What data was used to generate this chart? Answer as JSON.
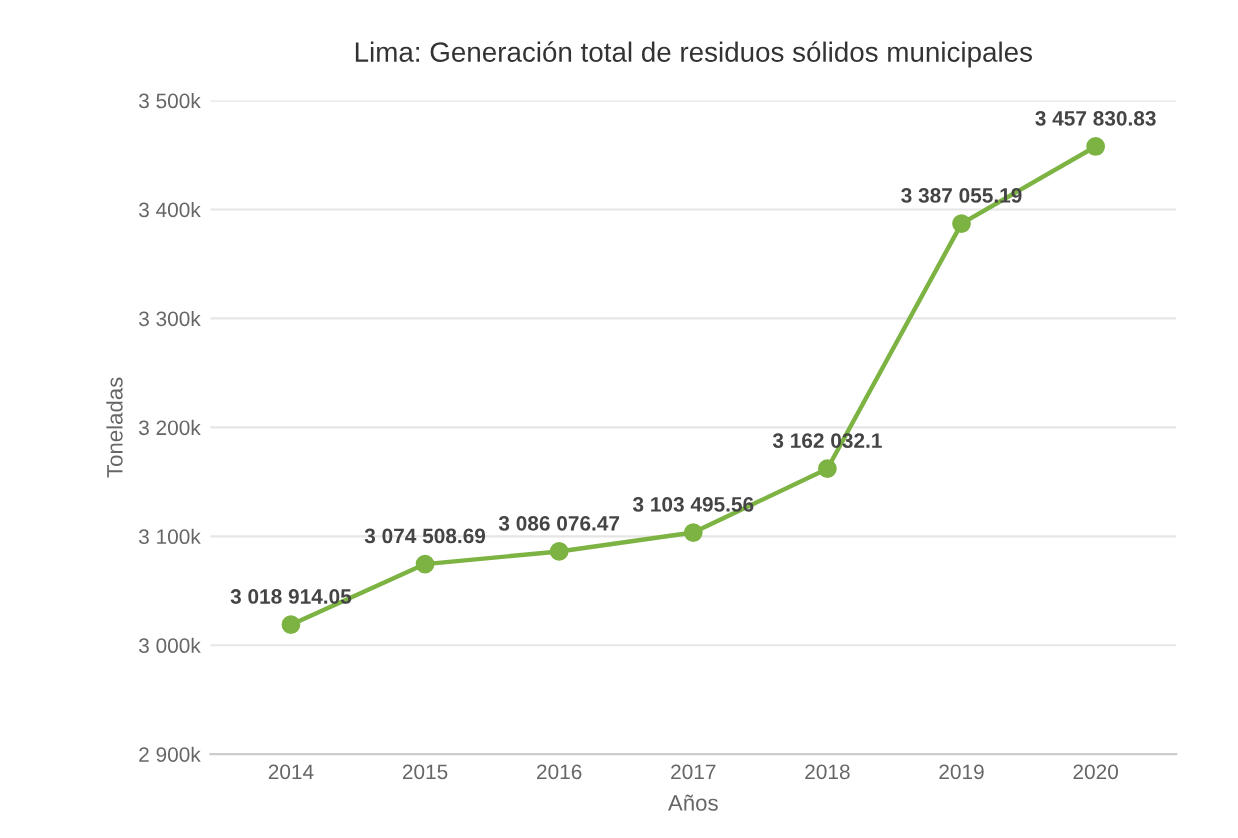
{
  "chart_data": {
    "type": "line",
    "title": "Lima: Generación total de residuos sólidos municipales",
    "xlabel": "Años",
    "ylabel": "Toneladas",
    "categories": [
      "2014",
      "2015",
      "2016",
      "2017",
      "2018",
      "2019",
      "2020"
    ],
    "series": [
      {
        "color": "#7cb342",
        "values": [
          3018914.05,
          3074508.69,
          3086076.47,
          3103495.56,
          3162032.1,
          3387055.19,
          3457830.83
        ],
        "value_labels": [
          "3 018 914.05",
          "3 074 508.69",
          "3 086 076.47",
          "3 103 495.56",
          "3 162 032.1",
          "3 387 055.19",
          "3 457 830.83"
        ]
      }
    ],
    "ylim": [
      2900000,
      3500000
    ],
    "yticks": [
      {
        "value": 2900000,
        "label": "2 900k"
      },
      {
        "value": 3000000,
        "label": "3 000k"
      },
      {
        "value": 3100000,
        "label": "3 100k"
      },
      {
        "value": 3200000,
        "label": "3 200k"
      },
      {
        "value": 3300000,
        "label": "3 300k"
      },
      {
        "value": 3400000,
        "label": "3 400k"
      },
      {
        "value": 3500000,
        "label": "3 500k"
      }
    ],
    "grid": "y",
    "marker": "circle",
    "legend": false
  }
}
